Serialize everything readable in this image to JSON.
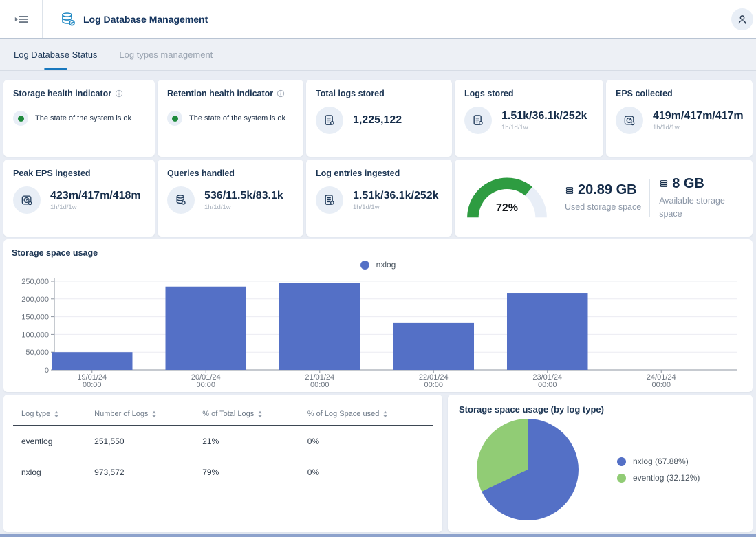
{
  "topbar": {
    "title": "Log Database Management"
  },
  "tabs": [
    {
      "label": "Log Database Status",
      "active": true
    },
    {
      "label": "Log types management",
      "active": false
    }
  ],
  "cards": {
    "storage_health": {
      "title": "Storage health indicator",
      "status": "The state of the system is ok"
    },
    "retention_health": {
      "title": "Retention health indicator",
      "status": "The state of the system is ok"
    },
    "total_logs": {
      "title": "Total logs stored",
      "value": "1,225,122"
    },
    "logs_stored": {
      "title": "Logs stored",
      "value": "1.51k/36.1k/252k",
      "period": "1h/1d/1w"
    },
    "eps_collected": {
      "title": "EPS collected",
      "value": "419m/417m/417m",
      "period": "1h/1d/1w"
    },
    "peak_eps": {
      "title": "Peak EPS ingested",
      "value": "423m/417m/418m",
      "period": "1h/1d/1w"
    },
    "queries_handled": {
      "title": "Queries handled",
      "value": "536/11.5k/83.1k",
      "period": "1h/1d/1w"
    },
    "log_entries": {
      "title": "Log entries ingested",
      "value": "1.51k/36.1k/252k",
      "period": "1h/1d/1w"
    },
    "storage_gauge": {
      "percent": 72,
      "percent_label": "72%",
      "used_value": "20.89 GB",
      "used_label": "Used storage space",
      "available_value": "8 GB",
      "available_label": "Available storage space",
      "arc_color": "#2e9c41",
      "track_color": "#e8eef7"
    }
  },
  "chart_data": [
    {
      "type": "bar",
      "title": "Storage space usage",
      "legend": [
        "nxlog"
      ],
      "legend_position": "top-center",
      "categories": [
        "19/01/24 00:00",
        "20/01/24 00:00",
        "21/01/24 00:00",
        "22/01/24 00:00",
        "23/01/24 00:00",
        "24/01/24 00:00"
      ],
      "values": [
        50000,
        235000,
        245000,
        132000,
        217000,
        0
      ],
      "ylim": [
        0,
        250000
      ],
      "ytick_step": 50000,
      "grid": true,
      "bar_color": "#5470c6"
    },
    {
      "type": "pie",
      "title": "Storage space usage (by log type)",
      "slices": [
        {
          "label": "nxlog",
          "percent": 67.88,
          "color": "#5470c6",
          "legend_label": "nxlog (67.88%)"
        },
        {
          "label": "eventlog",
          "percent": 32.12,
          "color": "#91cc75",
          "legend_label": "eventlog (32.12%)"
        }
      ],
      "legend_position": "right"
    }
  ],
  "table": {
    "columns": [
      "Log type",
      "Number of Logs",
      "% of Total Logs",
      "% of Log Space used"
    ],
    "rows": [
      [
        "eventlog",
        "251,550",
        "21%",
        "0%"
      ],
      [
        "nxlog",
        "973,572",
        "79%",
        "0%"
      ]
    ]
  },
  "colors": {
    "accent_blue": "#1878be",
    "icon_blue": "#1d87c2",
    "navy_text": "#14345e",
    "bar_blue": "#5470c6",
    "pie_green": "#91cc75",
    "gauge_green": "#2e9c41",
    "ok_green": "#18a24b",
    "page_bg": "#e9edf4"
  }
}
